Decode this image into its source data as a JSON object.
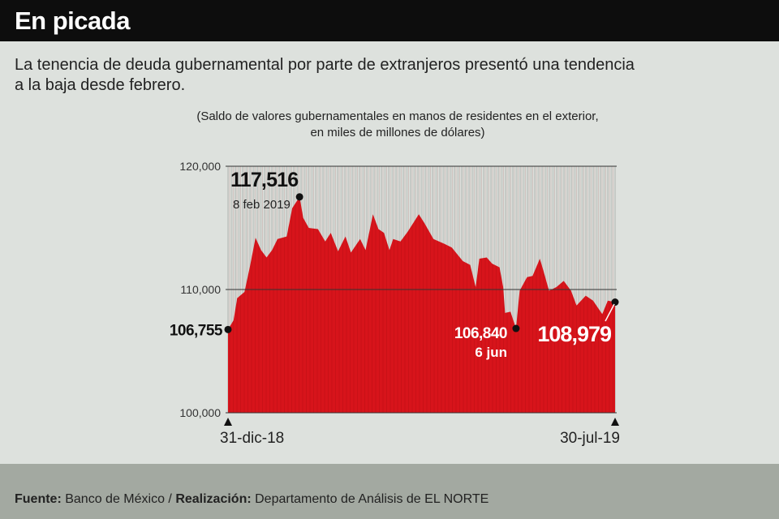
{
  "header": {
    "title": "En picada"
  },
  "subtitle": "La tenencia de deuda gubernamental por parte de extranjeros presentó una tendencia a la baja desde febrero.",
  "note_line1": "(Saldo de valores gubernamentales en manos de residentes en el exterior,",
  "note_line2": "en miles de millones de dólares)",
  "footer": {
    "source_label": "Fuente:",
    "source": "Banco de México /",
    "credit_label": "Realización:",
    "credit": "Departamento de Análisis de EL NORTE"
  },
  "colors": {
    "area": "#d7141b",
    "header": "#0d0d0d",
    "background": "#dde1dd",
    "footer": "#a3a9a1"
  },
  "chart_data": {
    "type": "area",
    "title": "En picada",
    "xlabel": "",
    "ylabel": "",
    "ylim": [
      100000,
      120000
    ],
    "xlim": [
      0,
      211
    ],
    "yticks": [
      100000,
      110000,
      120000
    ],
    "ytick_labels": [
      "100,000",
      "110,000",
      "120,000"
    ],
    "x_start_label": "31-dic-18",
    "x_end_label": "30-jul-19",
    "grid": true,
    "x": [
      0,
      3,
      5,
      9,
      12,
      15,
      18,
      21,
      24,
      27,
      32,
      35,
      39,
      41,
      44,
      49,
      53,
      56,
      60,
      64,
      67,
      72,
      75,
      79,
      82,
      85,
      88,
      90,
      94,
      98,
      104,
      107,
      112,
      118,
      122,
      128,
      132,
      135,
      137,
      141,
      144,
      148,
      150,
      151,
      154,
      157,
      159,
      163,
      166,
      170,
      172,
      175,
      179,
      183,
      187,
      190,
      195,
      199,
      204,
      207,
      211
    ],
    "values": [
      106755,
      107500,
      109300,
      109800,
      111900,
      114200,
      113200,
      112600,
      113200,
      114100,
      114300,
      116600,
      117516,
      115800,
      115000,
      114900,
      113900,
      114600,
      113100,
      114300,
      113000,
      114100,
      113200,
      116100,
      114900,
      114600,
      113200,
      114100,
      113900,
      114700,
      116100,
      115400,
      114100,
      113700,
      113400,
      112300,
      112000,
      110200,
      112500,
      112600,
      112100,
      111800,
      110200,
      108100,
      108200,
      106840,
      109900,
      111000,
      111100,
      112500,
      111500,
      109900,
      110200,
      110700,
      109900,
      108700,
      109500,
      109100,
      108000,
      109100,
      108979
    ],
    "annotations": [
      {
        "x": 0,
        "value": 106755,
        "label": "106,755"
      },
      {
        "x": 39,
        "value": 117516,
        "label": "117,516",
        "sublabel": "8 feb 2019"
      },
      {
        "x": 157,
        "value": 106840,
        "label": "106,840",
        "sublabel": "6 jun"
      },
      {
        "x": 211,
        "value": 108979,
        "label": "108,979"
      }
    ]
  }
}
